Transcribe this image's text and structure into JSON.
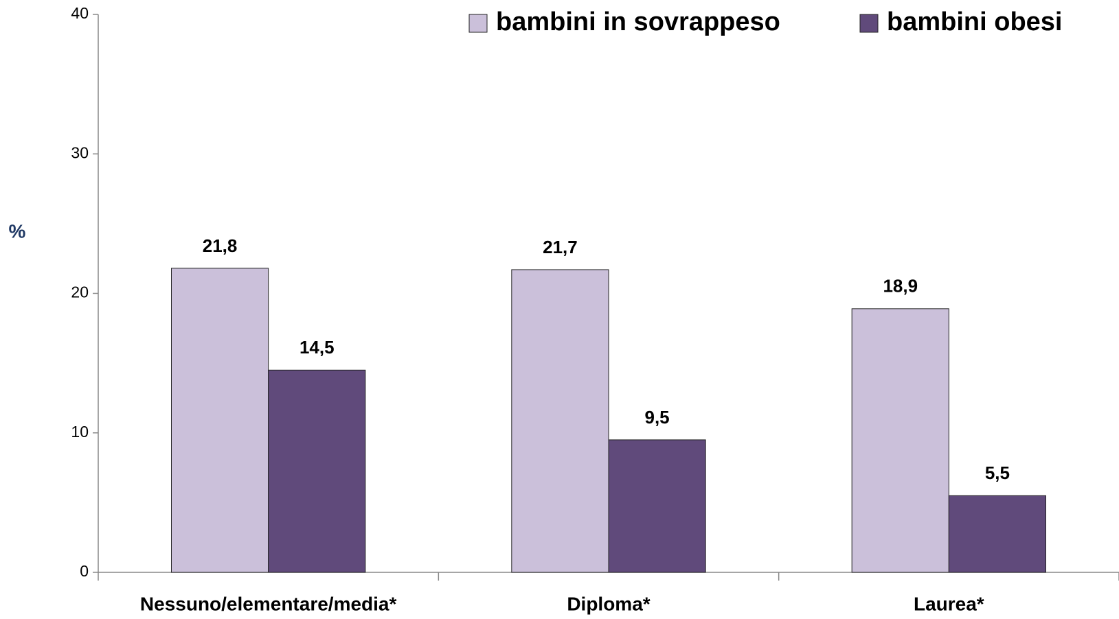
{
  "chart_data": {
    "type": "bar",
    "y_label": "%",
    "categories": [
      "Nessuno/elementare/media*",
      "Diploma*",
      "Laurea*"
    ],
    "series": [
      {
        "name": "bambini in sovrappeso",
        "color": "#cbc0da",
        "values": [
          21.8,
          21.7,
          18.9
        ],
        "value_labels": [
          "21,8",
          "21,7",
          "18,9"
        ]
      },
      {
        "name": "bambini obesi",
        "color": "#604a7b",
        "values": [
          14.5,
          9.5,
          5.5
        ],
        "value_labels": [
          "14,5",
          "9,5",
          "5,5"
        ]
      }
    ],
    "ylim": [
      0,
      40
    ],
    "yticks": [
      0,
      10,
      20,
      30,
      40
    ],
    "grid": false,
    "legend": "top-right"
  }
}
